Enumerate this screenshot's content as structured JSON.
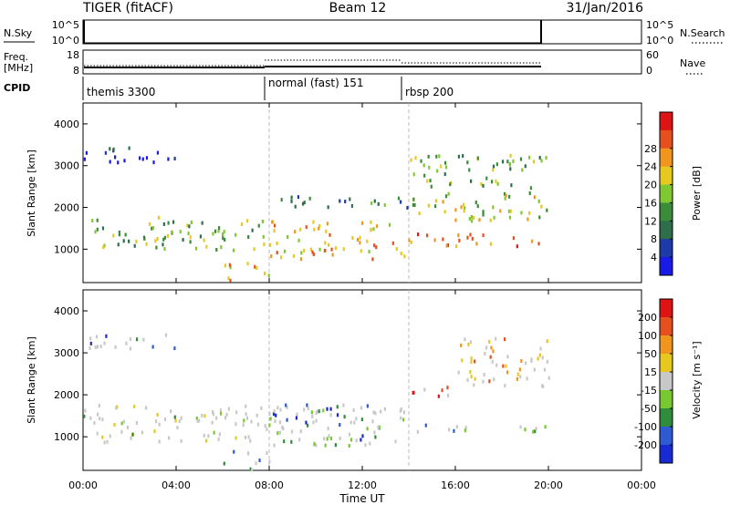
{
  "header": {
    "radar": "TIGER (fitACF)",
    "beam": "Beam 12",
    "date": "31/Jan/2016"
  },
  "strip_panels": {
    "nsky": {
      "left_label": "N.Sky",
      "right_label": "N.Search",
      "left_ticks": [
        "10^5",
        "10^0"
      ],
      "right_ticks": [
        "10^5",
        "10^0"
      ]
    },
    "freq": {
      "left_label_1": "Freq.",
      "left_label_2": "[MHz]",
      "right_label": "Nave",
      "left_ticks": [
        "18",
        "8"
      ],
      "right_ticks": [
        "60",
        "0"
      ]
    },
    "cpid": {
      "label": "CPID",
      "modes": [
        "themis 3300",
        "normal (fast) 151",
        "rbsp 200"
      ]
    }
  },
  "chart_data": [
    {
      "type": "heatmap",
      "panel": "power",
      "ylabel": "Slant Range [km]",
      "yticks": [
        "1000",
        "2000",
        "3000",
        "4000"
      ],
      "ylim": [
        200,
        4500
      ],
      "xlim_hours": [
        0,
        24
      ],
      "colorbar": {
        "label": "Power [dB]",
        "ticks": [
          "4",
          "8",
          "12",
          "16",
          "20",
          "24",
          "28"
        ],
        "colors": [
          "#1a1ae6",
          "#1e3aa8",
          "#2e6e4a",
          "#3a8c3a",
          "#7fc832",
          "#e6c81e",
          "#f0961e",
          "#e6501e",
          "#dc1414"
        ]
      },
      "cpid_boundaries_hours": [
        0,
        8,
        14,
        20
      ]
    },
    {
      "type": "heatmap",
      "panel": "velocity",
      "ylabel": "Slant Range [km]",
      "yticks": [
        "1000",
        "2000",
        "3000",
        "4000"
      ],
      "ylim": [
        200,
        4500
      ],
      "xlim_hours": [
        0,
        24
      ],
      "colorbar": {
        "label": "Velocity [m s⁻¹]",
        "ticks": [
          "200",
          "100",
          "50",
          "15",
          "-15",
          "-50",
          "-100",
          "-200"
        ],
        "colors": [
          "#1a2ad2",
          "#2e5ad2",
          "#2e8c3a",
          "#78c832",
          "#c8c8c8",
          "#e6c81e",
          "#f0961e",
          "#e6501e",
          "#dc1414"
        ]
      },
      "cpid_boundaries_hours": [
        0,
        8,
        14,
        20
      ]
    }
  ],
  "x_axis": {
    "ticks": [
      "00:00",
      "04:00",
      "08:00",
      "12:00",
      "16:00",
      "20:00",
      "00:00"
    ],
    "label": "Time UT"
  }
}
